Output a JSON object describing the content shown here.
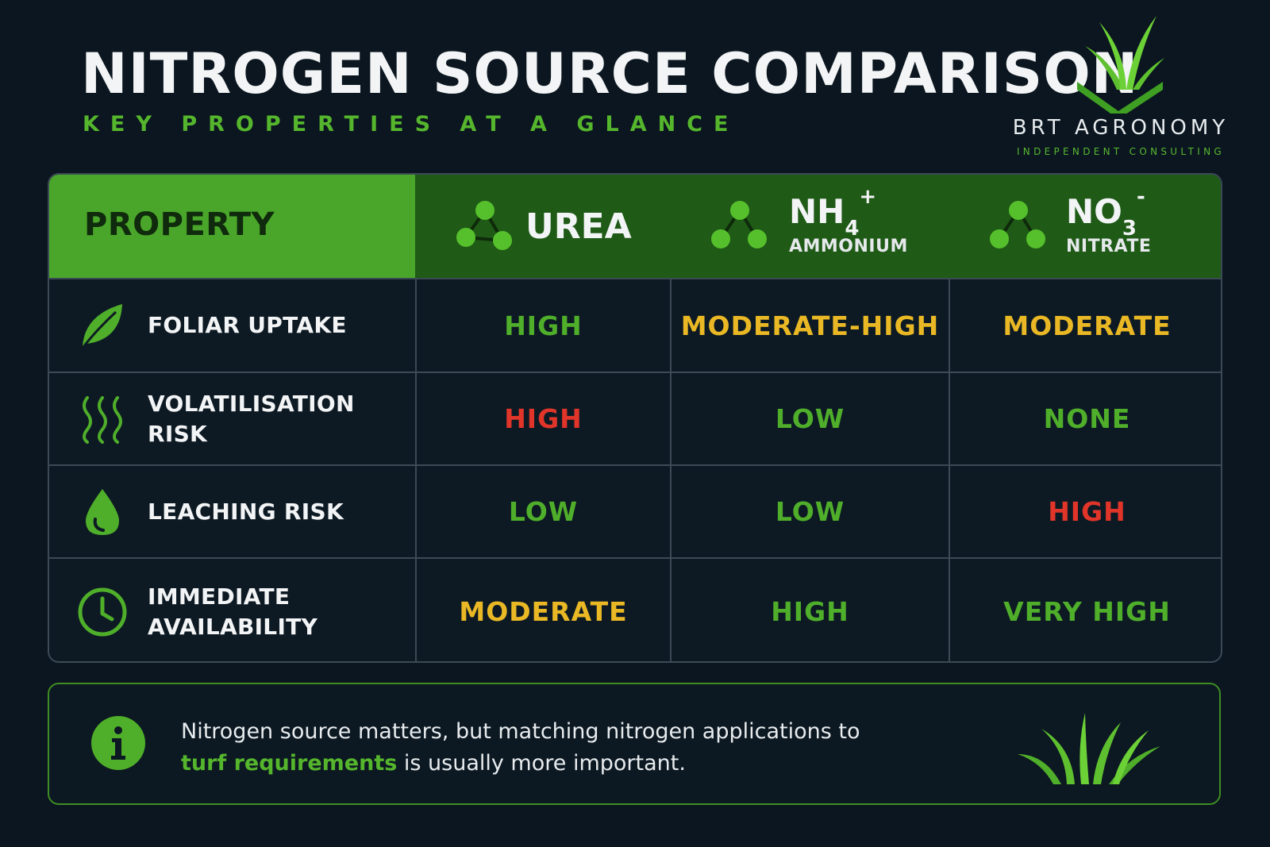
{
  "title": "NITROGEN SOURCE COMPARISON",
  "subtitle": "KEY PROPERTIES AT A GLANCE",
  "brand": {
    "name": "BRT AGRONOMY",
    "tagline": "INDEPENDENT CONSULTING"
  },
  "colors": {
    "background": "#0b1620",
    "accent_green": "#55b52c",
    "header_green": "#4aa62a",
    "header_dark_green": "#1f5a17",
    "rating_good": "#4fae2a",
    "rating_moderate": "#e9b824",
    "rating_bad": "#e1352a"
  },
  "table": {
    "property_header": "PROPERTY",
    "columns": {
      "urea": {
        "label": "UREA",
        "icon": "molecule-icon"
      },
      "ammonium": {
        "formula": "NH",
        "subscript": "4",
        "superscript": "+",
        "name": "AMMONIUM",
        "icon": "molecule-icon"
      },
      "nitrate": {
        "formula": "NO",
        "subscript": "3",
        "superscript": "-",
        "name": "NITRATE",
        "icon": "molecule-icon"
      }
    },
    "rows": [
      {
        "icon": "leaf-icon",
        "label": "FOLIAR UPTAKE",
        "values": [
          "HIGH",
          "MODERATE-HIGH",
          "MODERATE"
        ]
      },
      {
        "icon": "heat-waves-icon",
        "label": "VOLATILISATION RISK",
        "values": [
          "HIGH",
          "LOW",
          "NONE"
        ]
      },
      {
        "icon": "water-drop-icon",
        "label": "LEACHING RISK",
        "values": [
          "LOW",
          "LOW",
          "HIGH"
        ]
      },
      {
        "icon": "clock-icon",
        "label_line1": "IMMEDIATE",
        "label_line2": "AVAILABILITY",
        "values": [
          "MODERATE",
          "HIGH",
          "VERY HIGH"
        ]
      }
    ]
  },
  "note": {
    "icon": "info-icon",
    "text_part1": "Nitrogen source matters, but matching nitrogen applications to ",
    "highlight": "turf requirements",
    "text_part2": " is usually more important.",
    "decoration": "grass-icon"
  }
}
